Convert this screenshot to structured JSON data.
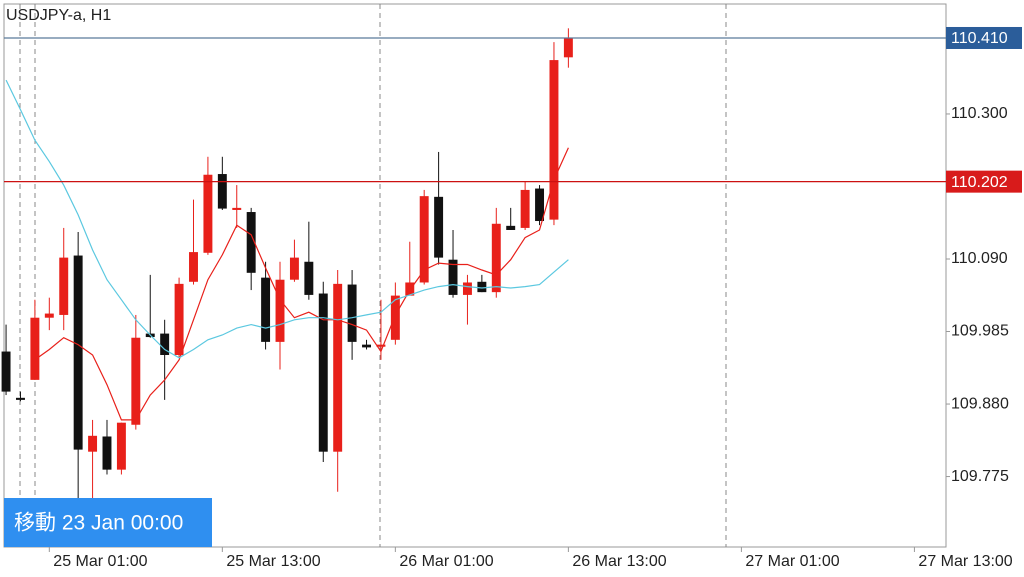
{
  "chart_data": {
    "type": "candlestick",
    "title": "USDJPY-a, H1",
    "up_color": "#e8201a",
    "down_color": "#111111",
    "open": [
      109.956,
      109.889,
      109.915,
      110.005,
      110.009,
      110.095,
      109.811,
      109.833,
      109.785,
      109.85,
      109.982,
      109.982,
      109.951,
      110.057,
      110.099,
      110.213,
      110.161,
      110.158,
      110.063,
      109.97,
      110.06,
      110.086,
      110.04,
      109.811,
      110.053,
      109.966,
      109.963,
      109.973,
      110.037,
      110.056,
      110.18,
      110.089,
      110.038,
      110.057,
      110.042,
      110.138,
      110.135,
      110.192,
      110.147,
      110.382
    ],
    "high": [
      109.995,
      109.898,
      110.031,
      110.034,
      110.135,
      110.129,
      109.857,
      109.857,
      109.853,
      110.009,
      110.067,
      110.002,
      110.063,
      110.176,
      110.238,
      110.238,
      110.197,
      110.164,
      110.086,
      110.086,
      110.118,
      110.144,
      110.057,
      110.074,
      110.074,
      109.973,
      110.031,
      110.056,
      110.115,
      110.19,
      110.245,
      110.132,
      110.067,
      110.067,
      110.164,
      110.164,
      110.202,
      110.197,
      110.404,
      110.424
    ],
    "low": [
      109.893,
      109.884,
      109.915,
      109.987,
      109.987,
      109.741,
      109.741,
      109.778,
      109.778,
      109.843,
      109.976,
      109.886,
      109.947,
      110.053,
      110.096,
      110.161,
      110.135,
      110.045,
      109.959,
      109.93,
      110.057,
      110.031,
      109.796,
      109.753,
      109.944,
      109.959,
      109.944,
      109.966,
      110.037,
      110.053,
      110.082,
      110.034,
      109.995,
      110.042,
      110.034,
      110.132,
      110.132,
      110.139,
      110.139,
      110.367
    ],
    "close": [
      109.898,
      109.886,
      110.005,
      110.011,
      110.092,
      109.814,
      109.834,
      109.785,
      109.853,
      109.976,
      109.977,
      109.951,
      110.054,
      110.1,
      110.212,
      110.163,
      110.164,
      110.07,
      109.97,
      110.06,
      110.092,
      110.038,
      109.811,
      110.054,
      109.97,
      109.962,
      109.966,
      110.037,
      110.056,
      110.181,
      110.092,
      110.038,
      110.056,
      110.042,
      110.141,
      110.132,
      110.19,
      110.145,
      110.378,
      110.41
    ],
    "series": [
      {
        "color": "#e8201a",
        "values": [
          null,
          null,
          109.944,
          109.959,
          109.976,
          109.966,
          109.951,
          109.908,
          109.857,
          109.857,
          109.893,
          109.915,
          109.944,
          110.002,
          110.06,
          110.096,
          110.139,
          110.125,
          110.077,
          110.031,
          110.005,
          110.013,
          110.002,
          110.002,
          109.995,
          109.987,
          109.956,
          110.009,
          110.045,
          110.074,
          110.084,
          110.082,
          110.082,
          110.074,
          110.067,
          110.089,
          110.121,
          110.132,
          110.205,
          110.251
        ]
      },
      {
        "color": "#5bc8e0",
        "values": [
          110.349,
          110.306,
          110.262,
          110.231,
          110.197,
          110.154,
          110.103,
          110.06,
          110.031,
          110.002,
          109.98,
          109.959,
          109.947,
          109.959,
          109.973,
          109.98,
          109.99,
          109.995,
          109.99,
          109.995,
          110.002,
          110.005,
          110.005,
          110.002,
          110.005,
          110.009,
          110.013,
          110.031,
          110.038,
          110.045,
          110.05,
          110.053,
          110.05,
          110.048,
          110.05,
          110.048,
          110.05,
          110.053,
          110.071,
          110.089
        ]
      }
    ],
    "price_lines": [
      {
        "value": 110.41,
        "label": "110.410",
        "color": "#5a7a9a",
        "label_color": "#2b5d9a"
      },
      {
        "value": 110.202,
        "label": "110.202",
        "color": "#cc1111",
        "label_color": "#d81b1b"
      }
    ],
    "xlim": [
      -0.42,
      65.19
    ],
    "xticks": [
      {
        "value": 3,
        "label": "25 Mar 01:00"
      },
      {
        "value": 15,
        "label": "25 Mar 13:00"
      },
      {
        "value": 27,
        "label": "26 Mar 01:00"
      },
      {
        "value": 39,
        "label": "26 Mar 13:00"
      },
      {
        "value": 51,
        "label": "27 Mar 01:00"
      },
      {
        "value": 63,
        "label": "27 Mar 13:00"
      }
    ],
    "ylim": [
      109.673,
      110.465
    ],
    "yticks": [
      {
        "value": 110.3,
        "label": "110.300"
      },
      {
        "value": 110.09,
        "label": "110.090"
      },
      {
        "value": 109.985,
        "label": "109.985"
      },
      {
        "value": 109.88,
        "label": "109.880"
      },
      {
        "value": 109.775,
        "label": "109.775"
      }
    ]
  },
  "ui": {
    "jump_button": "移動 23 Jan 00:00"
  }
}
